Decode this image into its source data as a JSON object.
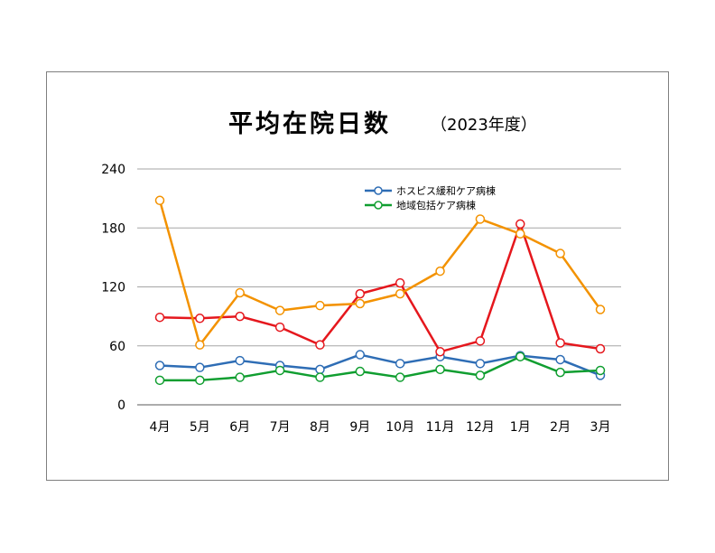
{
  "chart_data": {
    "type": "line",
    "title": "平均在院日数",
    "subtitle": "（2023年度）",
    "categories": [
      "4月",
      "5月",
      "6月",
      "7月",
      "8月",
      "9月",
      "10月",
      "11月",
      "12月",
      "1月",
      "2月",
      "3月"
    ],
    "ylim": [
      0,
      240
    ],
    "yticks": [
      "0",
      "60",
      "120",
      "180",
      "240"
    ],
    "grid": true,
    "legend_position": "top-center",
    "series": [
      {
        "name": "ホスピス緩和ケア病棟",
        "color": "#2e6db5",
        "in_legend": true,
        "values": [
          40,
          38,
          45,
          40,
          36,
          51,
          42,
          49,
          42,
          50,
          46,
          30
        ]
      },
      {
        "name": "地域包括ケア病棟",
        "color": "#109e30",
        "in_legend": true,
        "values": [
          25,
          25,
          28,
          35,
          28,
          34,
          28,
          36,
          30,
          49,
          33,
          35
        ]
      },
      {
        "name": "",
        "color": "#e5171d",
        "in_legend": false,
        "values": [
          89,
          88,
          90,
          79,
          61,
          113,
          124,
          54,
          65,
          184,
          63,
          57
        ]
      },
      {
        "name": "",
        "color": "#f39200",
        "in_legend": false,
        "values": [
          208,
          61,
          114,
          96,
          101,
          103,
          113,
          136,
          189,
          174,
          154,
          97
        ]
      }
    ]
  }
}
